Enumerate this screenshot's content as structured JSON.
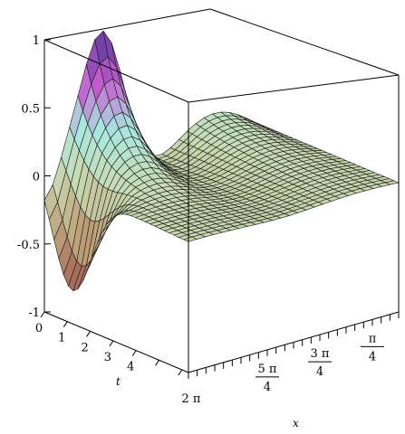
{
  "chart_data": {
    "type": "surface3d",
    "title": "",
    "function": "z = u(x, t), oscillatory surface decaying along t",
    "x_axis": {
      "label": "x",
      "range": [
        0,
        6.283185307179586
      ],
      "ticks": [
        {
          "value": 6.283185307179586,
          "label": "2 π"
        },
        {
          "value": 3.9269908169872414,
          "num": "5 π",
          "den": "4"
        },
        {
          "value": 2.356194490192345,
          "num": "3 π",
          "den": "4"
        },
        {
          "value": 0.7853981633974483,
          "num": "π",
          "den": "4"
        }
      ]
    },
    "t_axis": {
      "label": "t",
      "range": [
        0,
        6.283185307179586
      ],
      "ticks": [
        "0",
        "1",
        "2",
        "3",
        "4"
      ]
    },
    "z_axis": {
      "range": [
        -1,
        1
      ],
      "ticks": [
        "1",
        "0.5",
        "0",
        "-0.5",
        "-1"
      ]
    },
    "box": true,
    "grid_mesh": {
      "x_lines": 25,
      "t_lines": 30
    },
    "colors": {
      "peak": "#3a2d8c",
      "mid_purple": "#c45cd0",
      "cyan": "#a8e8df",
      "dark_red": "#8c2a3a",
      "mesh_line": "#1a1a1a",
      "box_line": "#000000"
    }
  }
}
